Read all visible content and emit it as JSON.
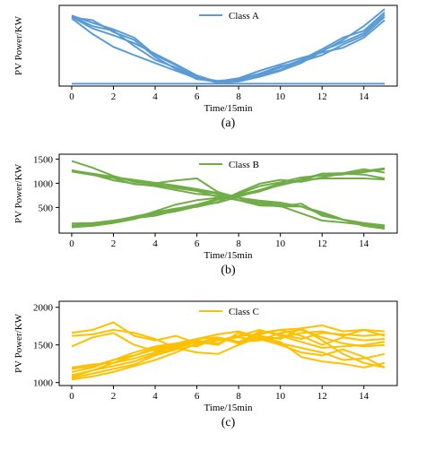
{
  "chart_data": [
    {
      "type": "line",
      "caption": "(a)",
      "xlabel": "Time/15min",
      "ylabel": "PV Power/KW",
      "legend": "Class A",
      "legend_position": "top-center",
      "color": "#5b9bd5",
      "xlim": [
        -0.6,
        15.6
      ],
      "ylim": [
        -5,
        170
      ],
      "xticks": [
        0,
        2,
        4,
        6,
        8,
        10,
        12,
        14
      ],
      "yticks": [],
      "grid": false,
      "x": [
        0,
        1,
        2,
        3,
        4,
        5,
        6,
        7,
        8,
        9,
        10,
        11,
        12,
        13,
        14,
        15
      ],
      "series": [
        {
          "values": [
            148,
            132,
            118,
            100,
            62,
            40,
            16,
            2,
            5,
            15,
            28,
            45,
            70,
            95,
            125,
            162
          ]
        },
        {
          "values": [
            145,
            120,
            105,
            88,
            65,
            42,
            18,
            4,
            8,
            20,
            35,
            52,
            75,
            100,
            115,
            155
          ]
        },
        {
          "values": [
            142,
            108,
            80,
            62,
            45,
            28,
            12,
            3,
            10,
            22,
            38,
            48,
            62,
            85,
            105,
            145
          ]
        },
        {
          "values": [
            144,
            138,
            112,
            95,
            58,
            32,
            10,
            5,
            12,
            28,
            42,
            56,
            68,
            78,
            100,
            138
          ]
        },
        {
          "values": [
            146,
            125,
            115,
            82,
            52,
            35,
            14,
            6,
            10,
            18,
            30,
            50,
            72,
            90,
            110,
            150
          ]
        },
        {
          "values": [
            0,
            0,
            0,
            0,
            0,
            0,
            0,
            0,
            0,
            0,
            0,
            0,
            0,
            0,
            0,
            0
          ]
        }
      ]
    },
    {
      "type": "line",
      "caption": "(b)",
      "xlabel": "Time/15min",
      "ylabel": "PV Power/KW",
      "legend": "Class B",
      "legend_position": "top-center",
      "color": "#70ad47",
      "xlim": [
        -0.6,
        15.6
      ],
      "ylim": [
        -30,
        1600
      ],
      "xticks": [
        0,
        2,
        4,
        6,
        8,
        10,
        12,
        14
      ],
      "yticks": [
        500,
        1000,
        1500
      ],
      "grid": false,
      "x": [
        0,
        1,
        2,
        3,
        4,
        5,
        6,
        7,
        8,
        9,
        10,
        11,
        12,
        13,
        14,
        15
      ],
      "series": [
        {
          "values": [
            1460,
            1320,
            1150,
            1030,
            980,
            900,
            840,
            720,
            650,
            620,
            560,
            520,
            360,
            250,
            150,
            100
          ]
        },
        {
          "values": [
            1260,
            1200,
            1130,
            1040,
            1000,
            1060,
            1100,
            820,
            700,
            640,
            600,
            520,
            400,
            250,
            120,
            60
          ]
        },
        {
          "values": [
            1250,
            1180,
            1060,
            990,
            940,
            860,
            780,
            740,
            700,
            560,
            520,
            520,
            400,
            250,
            150,
            80
          ]
        },
        {
          "values": [
            1240,
            1170,
            1110,
            980,
            960,
            920,
            860,
            780,
            650,
            540,
            530,
            380,
            230,
            190,
            140,
            110
          ]
        },
        {
          "values": [
            1270,
            1190,
            1130,
            1070,
            1010,
            950,
            880,
            800,
            700,
            600,
            520,
            580,
            330,
            250,
            180,
            130
          ]
        },
        {
          "values": [
            90,
            120,
            180,
            260,
            380,
            470,
            560,
            680,
            780,
            940,
            1020,
            1120,
            1160,
            1180,
            1250,
            1310
          ]
        },
        {
          "values": [
            130,
            160,
            210,
            280,
            330,
            440,
            540,
            600,
            720,
            860,
            1000,
            1040,
            1200,
            1190,
            1230,
            1290
          ]
        },
        {
          "values": [
            170,
            180,
            230,
            300,
            350,
            420,
            520,
            660,
            740,
            830,
            970,
            1080,
            1200,
            1210,
            1290,
            1220
          ]
        },
        {
          "values": [
            120,
            150,
            220,
            310,
            400,
            480,
            510,
            610,
            810,
            990,
            1070,
            1030,
            1120,
            1200,
            1180,
            1100
          ]
        },
        {
          "values": [
            100,
            140,
            200,
            280,
            420,
            560,
            650,
            700,
            760,
            860,
            960,
            1060,
            1100,
            1100,
            1100,
            1080
          ]
        }
      ]
    },
    {
      "type": "line",
      "caption": "(c)",
      "xlabel": "Time/15min",
      "ylabel": "PV Power/KW",
      "legend": "Class C",
      "legend_position": "top-center",
      "color": "#ffc000",
      "xlim": [
        -0.6,
        15.6
      ],
      "ylim": [
        960,
        2080
      ],
      "xticks": [
        0,
        2,
        4,
        6,
        8,
        10,
        12,
        14
      ],
      "yticks": [
        1000,
        1500,
        2000
      ],
      "grid": false,
      "x": [
        0,
        1,
        2,
        3,
        4,
        5,
        6,
        7,
        8,
        9,
        10,
        11,
        12,
        13,
        14,
        15
      ],
      "series": [
        {
          "values": [
            1660,
            1700,
            1800,
            1620,
            1560,
            1620,
            1520,
            1580,
            1540,
            1660,
            1700,
            1720,
            1760,
            1680,
            1700,
            1680
          ]
        },
        {
          "values": [
            1620,
            1640,
            1700,
            1660,
            1580,
            1460,
            1400,
            1380,
            1500,
            1600,
            1540,
            1340,
            1280,
            1250,
            1200,
            1260
          ]
        },
        {
          "values": [
            1480,
            1600,
            1660,
            1500,
            1420,
            1500,
            1560,
            1520,
            1620,
            1700,
            1620,
            1540,
            1460,
            1480,
            1500,
            1540
          ]
        },
        {
          "values": [
            1180,
            1220,
            1300,
            1400,
            1480,
            1520,
            1580,
            1600,
            1540,
            1560,
            1660,
            1700,
            1600,
            1520,
            1480,
            1500
          ]
        },
        {
          "values": [
            1140,
            1200,
            1300,
            1360,
            1460,
            1500,
            1540,
            1560,
            1620,
            1640,
            1700,
            1620,
            1500,
            1600,
            1560,
            1580
          ]
        },
        {
          "values": [
            1080,
            1160,
            1260,
            1360,
            1440,
            1520,
            1480,
            1600,
            1520,
            1680,
            1640,
            1580,
            1660,
            1640,
            1620,
            1640
          ]
        },
        {
          "values": [
            1060,
            1120,
            1180,
            1240,
            1360,
            1440,
            1500,
            1560,
            1600,
            1560,
            1600,
            1660,
            1680,
            1620,
            1700,
            1620
          ]
        },
        {
          "values": [
            1040,
            1080,
            1140,
            1220,
            1300,
            1400,
            1520,
            1600,
            1540,
            1620,
            1580,
            1720,
            1560,
            1380,
            1260,
            1200
          ]
        },
        {
          "values": [
            1100,
            1160,
            1220,
            1280,
            1380,
            1460,
            1540,
            1500,
            1660,
            1580,
            1500,
            1400,
            1360,
            1440,
            1340,
            1200
          ]
        },
        {
          "values": [
            1200,
            1240,
            1260,
            1320,
            1400,
            1480,
            1580,
            1640,
            1680,
            1600,
            1520,
            1460,
            1400,
            1300,
            1320,
            1380
          ]
        }
      ]
    }
  ]
}
